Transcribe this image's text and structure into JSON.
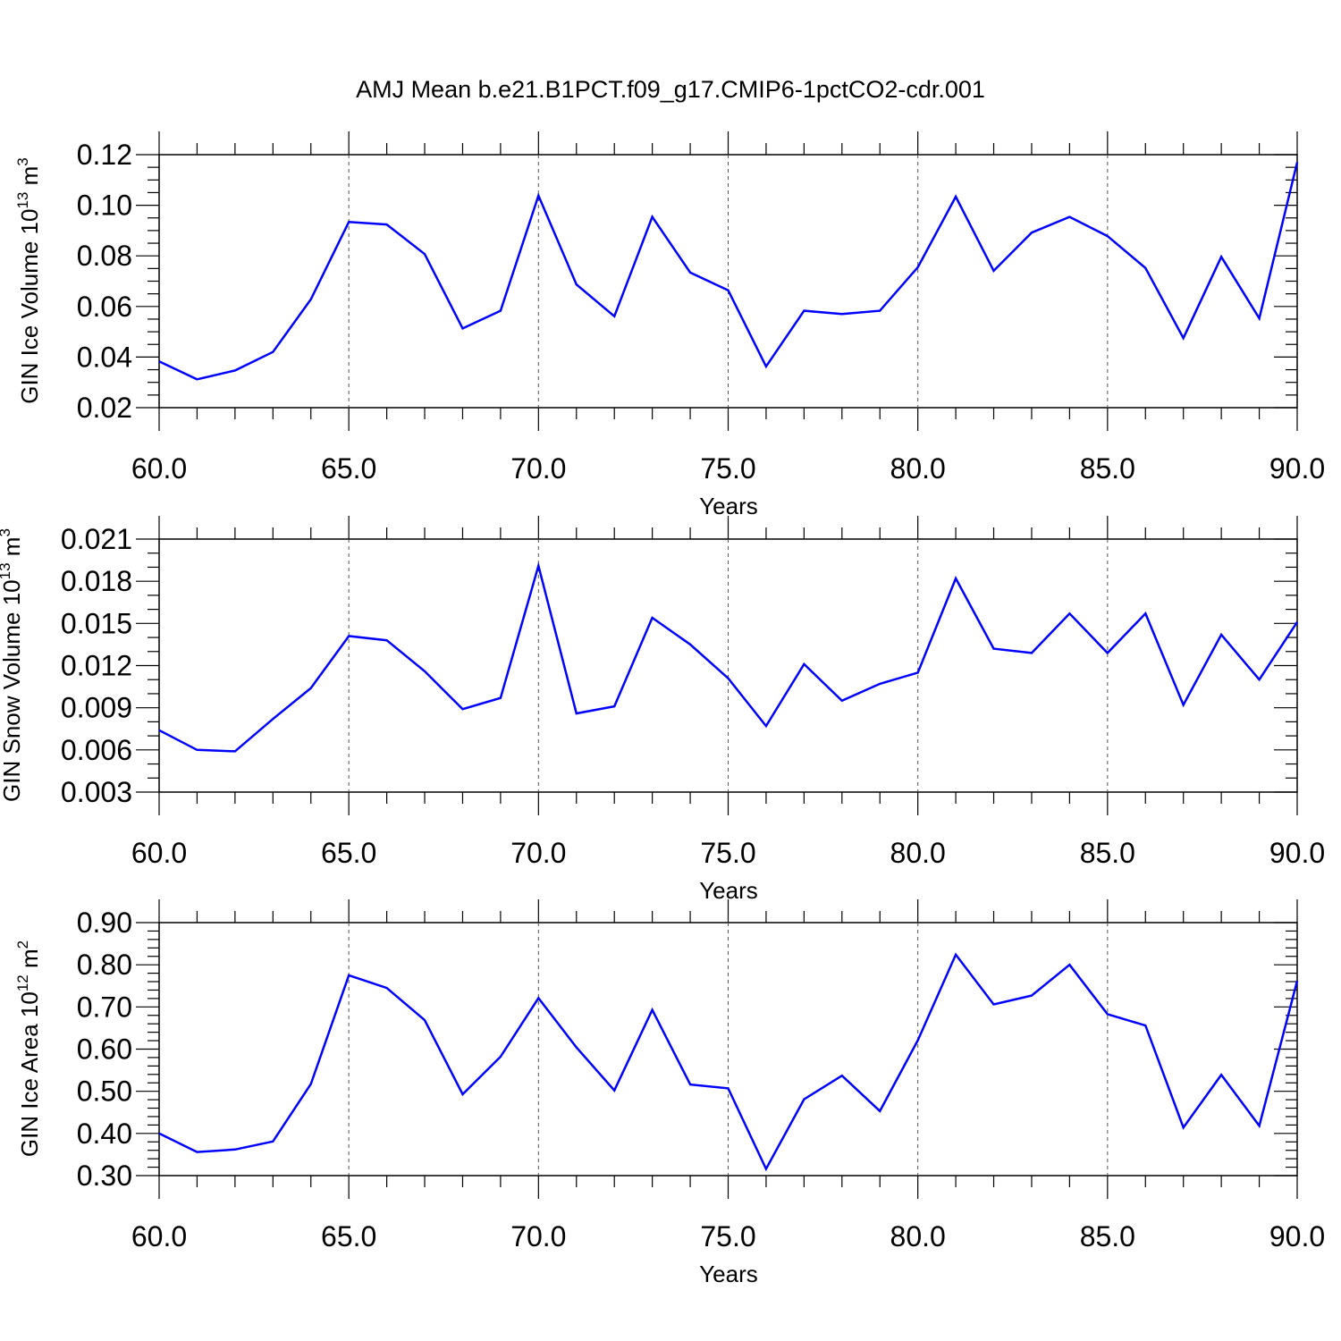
{
  "figure": {
    "title": "AMJ Mean b.e21.B1PCT.f09_g17.CMIP6-1pctCO2-cdr.001"
  },
  "colors": {
    "series": "#0000ff",
    "axes": "#000000",
    "grid": "#555555"
  },
  "chart_data": [
    {
      "type": "line",
      "xlabel": "Years",
      "ylabel_main": "GIN Ice Volume 10",
      "ylabel_exp": "13",
      "ylabel_unit": "m",
      "ylabel_unit_exp": "3",
      "xlim": [
        60,
        90
      ],
      "ylim": [
        0.02,
        0.12
      ],
      "xticks": [
        60,
        65,
        70,
        75,
        80,
        85,
        90
      ],
      "xtick_labels": [
        "60.0",
        "65.0",
        "70.0",
        "75.0",
        "80.0",
        "85.0",
        "90.0"
      ],
      "yticks": [
        0.02,
        0.04,
        0.06,
        0.08,
        0.1,
        0.12
      ],
      "ytick_labels": [
        "0.02",
        "0.04",
        "0.06",
        "0.08",
        "0.10",
        "0.12"
      ],
      "y_minor_step": 0.005,
      "grid": "dashed vertical at major x ticks",
      "x": [
        60,
        61,
        62,
        63,
        64,
        65,
        66,
        67,
        68,
        69,
        70,
        71,
        72,
        73,
        74,
        75,
        76,
        77,
        78,
        79,
        80,
        81,
        82,
        83,
        84,
        85,
        86,
        87,
        88,
        89,
        90
      ],
      "series": [
        {
          "values": [
            0.0383,
            0.0312,
            0.0347,
            0.042,
            0.0628,
            0.0934,
            0.0924,
            0.0807,
            0.0513,
            0.0583,
            0.1038,
            0.0687,
            0.0561,
            0.0954,
            0.0734,
            0.0664,
            0.0363,
            0.0583,
            0.057,
            0.0583,
            0.0755,
            0.1034,
            0.0741,
            0.0892,
            0.0954,
            0.0878,
            0.0752,
            0.0475,
            0.0796,
            0.0553,
            0.117
          ]
        }
      ]
    },
    {
      "type": "line",
      "xlabel": "Years",
      "ylabel_main": "GIN Snow Volume 10",
      "ylabel_exp": "13",
      "ylabel_unit": "m",
      "ylabel_unit_exp": "3",
      "xlim": [
        60,
        90
      ],
      "ylim": [
        0.003,
        0.021
      ],
      "xticks": [
        60,
        65,
        70,
        75,
        80,
        85,
        90
      ],
      "xtick_labels": [
        "60.0",
        "65.0",
        "70.0",
        "75.0",
        "80.0",
        "85.0",
        "90.0"
      ],
      "yticks": [
        0.003,
        0.006,
        0.009,
        0.012,
        0.015,
        0.018,
        0.021
      ],
      "ytick_labels": [
        "0.003",
        "0.006",
        "0.009",
        "0.012",
        "0.015",
        "0.018",
        "0.021"
      ],
      "y_minor_step": 0.001,
      "grid": "dashed vertical at major x ticks",
      "x": [
        60,
        61,
        62,
        63,
        64,
        65,
        66,
        67,
        68,
        69,
        70,
        71,
        72,
        73,
        74,
        75,
        76,
        77,
        78,
        79,
        80,
        81,
        82,
        83,
        84,
        85,
        86,
        87,
        88,
        89,
        90
      ],
      "series": [
        {
          "values": [
            0.0074,
            0.006,
            0.0059,
            0.0082,
            0.0104,
            0.0141,
            0.0138,
            0.0116,
            0.0089,
            0.0097,
            0.0191,
            0.0086,
            0.0091,
            0.0154,
            0.0135,
            0.0111,
            0.0077,
            0.0121,
            0.0095,
            0.0107,
            0.0115,
            0.0182,
            0.0132,
            0.0129,
            0.0157,
            0.0129,
            0.0157,
            0.0092,
            0.0142,
            0.011,
            0.0151
          ]
        }
      ]
    },
    {
      "type": "line",
      "xlabel": "Years",
      "ylabel_main": "GIN Ice Area 10",
      "ylabel_exp": "12",
      "ylabel_unit": "m",
      "ylabel_unit_exp": "2",
      "xlim": [
        60,
        90
      ],
      "ylim": [
        0.3,
        0.9
      ],
      "xticks": [
        60,
        65,
        70,
        75,
        80,
        85,
        90
      ],
      "xtick_labels": [
        "60.0",
        "65.0",
        "70.0",
        "75.0",
        "80.0",
        "85.0",
        "90.0"
      ],
      "yticks": [
        0.3,
        0.4,
        0.5,
        0.6,
        0.7,
        0.8,
        0.9
      ],
      "ytick_labels": [
        "0.30",
        "0.40",
        "0.50",
        "0.60",
        "0.70",
        "0.80",
        "0.90"
      ],
      "y_minor_step": 0.02,
      "grid": "dashed vertical at major x ticks",
      "x": [
        60,
        61,
        62,
        63,
        64,
        65,
        66,
        67,
        68,
        69,
        70,
        71,
        72,
        73,
        74,
        75,
        76,
        77,
        78,
        79,
        80,
        81,
        82,
        83,
        84,
        85,
        86,
        87,
        88,
        89,
        90
      ],
      "series": [
        {
          "values": [
            0.4,
            0.356,
            0.362,
            0.381,
            0.517,
            0.775,
            0.745,
            0.669,
            0.493,
            0.582,
            0.721,
            0.604,
            0.502,
            0.693,
            0.516,
            0.507,
            0.316,
            0.481,
            0.537,
            0.453,
            0.621,
            0.824,
            0.706,
            0.727,
            0.8,
            0.683,
            0.656,
            0.414,
            0.539,
            0.418,
            0.762
          ]
        }
      ]
    }
  ]
}
